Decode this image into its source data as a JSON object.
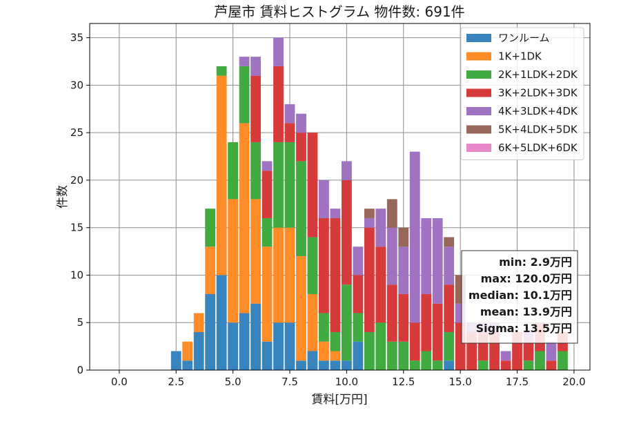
{
  "chart_data": {
    "type": "bar",
    "stacked": true,
    "title": "芦屋市 賃料ヒストグラム  物件数: 691件",
    "xlabel": "賃料[万円]",
    "ylabel": "件数",
    "xlim": [
      -1.3,
      20.7
    ],
    "ylim": [
      0,
      36.5
    ],
    "xticks": [
      0,
      2.5,
      5,
      7.5,
      10,
      12.5,
      15,
      17.5,
      20
    ],
    "xtick_labels": [
      "0.0",
      "2.5",
      "5.0",
      "7.5",
      "10.0",
      "12.5",
      "15.0",
      "17.5",
      "20.0"
    ],
    "yticks": [
      0,
      5,
      10,
      15,
      20,
      25,
      30,
      35
    ],
    "ytick_labels": [
      "0",
      "5",
      "10",
      "15",
      "20",
      "25",
      "30",
      "35"
    ],
    "grid": true,
    "legend_position": "top-right",
    "bin_width": 0.5,
    "bar_width": 0.45,
    "x": [
      2.5,
      3,
      3.5,
      4,
      4.5,
      5,
      5.5,
      6,
      6.5,
      7,
      7.5,
      8,
      8.5,
      9,
      9.5,
      10,
      10.5,
      11,
      11.5,
      12,
      12.5,
      13,
      13.5,
      14,
      14.5,
      15,
      15.5,
      16,
      16.5,
      17,
      17.5,
      18,
      18.5,
      19,
      19.5
    ],
    "series": [
      {
        "name": "ワンルーム",
        "color": "#3784bf",
        "values": [
          2,
          1,
          4,
          8,
          10,
          5,
          6,
          7,
          3,
          5,
          5,
          1,
          2,
          1,
          1,
          1,
          3,
          0,
          0,
          0,
          0,
          0,
          0,
          0,
          1,
          0,
          0,
          0,
          0,
          0,
          0,
          0,
          0,
          0,
          0
        ]
      },
      {
        "name": "1K+1DK",
        "color": "#ff8c26",
        "values": [
          0,
          2,
          2,
          5,
          21,
          13,
          20,
          11,
          10,
          10,
          10,
          11,
          6,
          2,
          1,
          0,
          0,
          0,
          0,
          0,
          0,
          0,
          0,
          0,
          0,
          0,
          0,
          0,
          0,
          0,
          0,
          0,
          0,
          0,
          0
        ]
      },
      {
        "name": "2K+1LDK+2DK",
        "color": "#41aa41",
        "values": [
          0,
          0,
          0,
          4,
          1,
          6,
          6,
          6,
          3,
          9,
          9,
          10,
          6,
          3,
          2,
          8,
          3,
          4,
          5,
          3,
          3,
          1,
          2,
          1,
          3,
          0,
          0,
          1,
          0,
          0,
          0,
          1,
          2,
          0,
          2
        ]
      },
      {
        "name": "3K+2LDK+3DK",
        "color": "#d63a3b",
        "values": [
          0,
          0,
          0,
          0,
          0,
          0,
          0,
          7,
          5,
          8,
          2,
          3,
          11,
          10,
          12,
          11,
          4,
          11,
          8,
          6,
          5,
          4,
          6,
          6,
          5,
          5,
          4,
          3,
          4,
          1,
          4,
          2,
          3,
          1,
          2
        ]
      },
      {
        "name": "4K+3LDK+4DK",
        "color": "#9f72c2",
        "values": [
          0,
          0,
          0,
          0,
          0,
          0,
          1,
          2,
          1,
          3,
          2,
          2,
          0,
          4,
          1,
          2,
          3,
          1,
          4,
          6,
          5,
          18,
          8,
          9,
          4,
          2,
          1,
          1,
          1,
          1,
          0,
          1,
          0,
          2,
          0
        ]
      },
      {
        "name": "5K+4LDK+5DK",
        "color": "#99665a",
        "values": [
          0,
          0,
          0,
          0,
          0,
          0,
          0,
          0,
          0,
          0,
          0,
          0,
          0,
          0,
          0,
          0,
          0,
          1,
          0,
          3,
          2,
          0,
          0,
          0,
          1,
          3,
          0,
          0,
          0,
          0,
          0,
          0,
          0,
          0,
          0
        ]
      },
      {
        "name": "6K+5LDK+6DK",
        "color": "#e888c8",
        "values": [
          0,
          0,
          0,
          0,
          0,
          0,
          0,
          0,
          0,
          0,
          0,
          0,
          0,
          0,
          0,
          0,
          0,
          0,
          0,
          0,
          0,
          0,
          0,
          0,
          0,
          0,
          0,
          0,
          0,
          0,
          0,
          0,
          0,
          0,
          0
        ]
      }
    ],
    "stats_box": {
      "position": "right",
      "lines": [
        "min: 2.9万円",
        "max: 120.0万円",
        "median: 10.1万円",
        "mean: 13.9万円",
        "Sigma: 13.5万円"
      ]
    }
  }
}
